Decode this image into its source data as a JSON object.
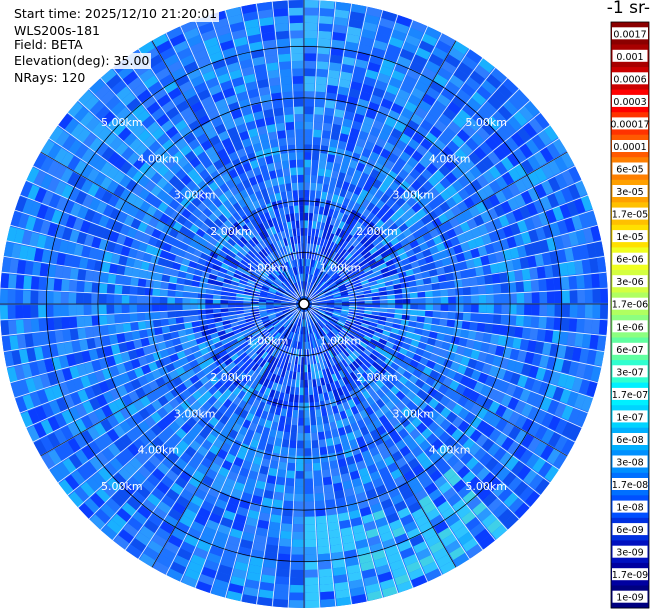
{
  "info": {
    "start_time": "Start time: 2025/12/10 21:20:01",
    "instrument": "WLS200s-181",
    "field": "Field: BETA",
    "elevation": "Elevation(deg): 35.00",
    "nrays": "NRays: 120"
  },
  "colorbar_units": "-1 sr-",
  "chart_data": {
    "type": "heatmap",
    "subtype": "polar-ppi",
    "field": "BETA",
    "n_rays": 120,
    "elevation_deg": 35.0,
    "range_ring_labels": [
      "1.00km",
      "2.00km",
      "3.00km",
      "4.00km",
      "5.00km"
    ],
    "range_rings_km": [
      1,
      2,
      3,
      4,
      5
    ],
    "max_range_km": 5.9,
    "colorbar": {
      "ticks": [
        "0.0017",
        "0.001",
        "0.0006",
        "0.0003",
        "0.00017",
        "0.0001",
        "6e-05",
        "3e-05",
        "1.7e-05",
        "1e-05",
        "6e-06",
        "3e-06",
        "1.7e-06",
        "1e-06",
        "6e-07",
        "3e-07",
        "1.7e-07",
        "1e-07",
        "6e-08",
        "3e-08",
        "1.7e-08",
        "1e-08",
        "6e-09",
        "3e-09",
        "1.7e-09",
        "1e-09"
      ],
      "colors": [
        "#8b0000",
        "#a80000",
        "#cc0000",
        "#ff0000",
        "#ff3300",
        "#ff5a00",
        "#ff7f00",
        "#ffa000",
        "#ffc000",
        "#ffe000",
        "#f0ff20",
        "#d4ff40",
        "#b0ff60",
        "#8cff80",
        "#60ffa0",
        "#30ffd0",
        "#00f0ff",
        "#00d4ff",
        "#00b0ff",
        "#0090ff",
        "#0070ff",
        "#0050ff",
        "#0030e0",
        "#0010c0",
        "#0000a0",
        "#000080"
      ]
    },
    "dominant_value_range": [
      "1e-08",
      "1e-07"
    ],
    "grid": true
  }
}
